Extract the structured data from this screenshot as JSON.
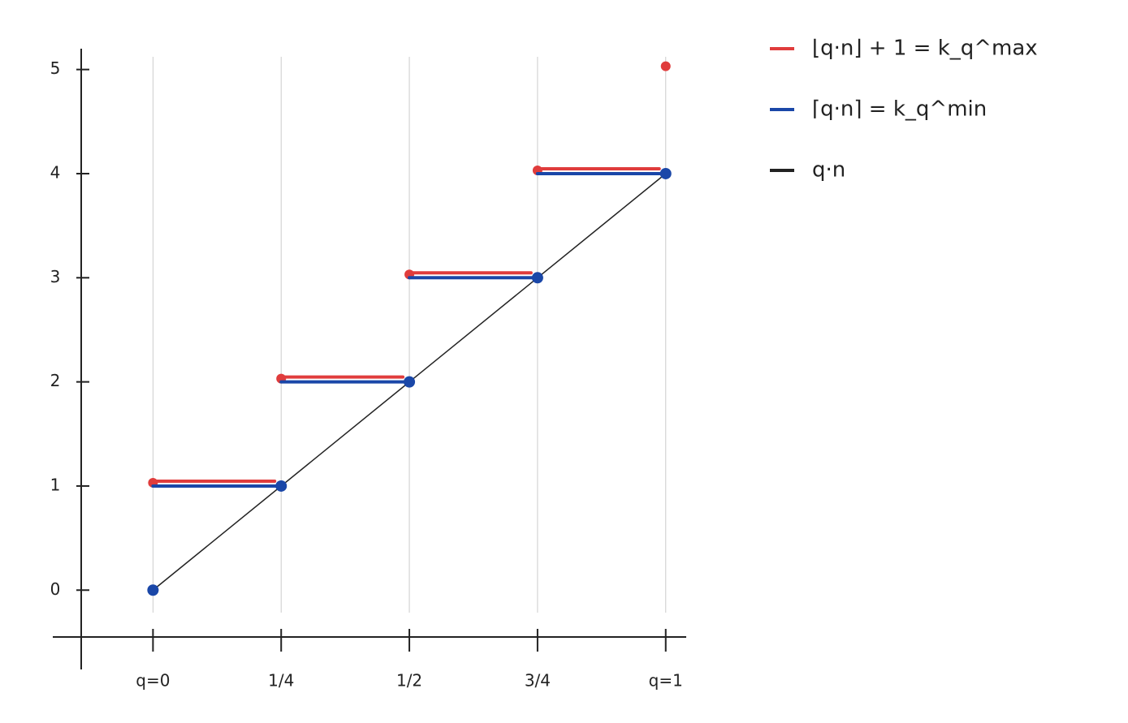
{
  "chart_data": {
    "type": "step",
    "xlim": [
      -0.14,
      1.04
    ],
    "ylim": [
      -0.45,
      5.2
    ],
    "xticks": [
      {
        "value": 0,
        "label": "q=0"
      },
      {
        "value": 0.25,
        "label": "1/4"
      },
      {
        "value": 0.5,
        "label": "1/2"
      },
      {
        "value": 0.75,
        "label": "3/4"
      },
      {
        "value": 1,
        "label": "q=1"
      }
    ],
    "yticks": [
      0,
      1,
      2,
      3,
      4,
      5
    ],
    "grid": true,
    "legend": "top-right",
    "series": [
      {
        "name": "⌊q·n⌋ + 1 = k_q^max",
        "color": "#e03c3c",
        "step": "post",
        "x": [
          0,
          0.25,
          0.5,
          0.75,
          1
        ],
        "values": [
          1,
          2,
          3,
          4,
          5
        ]
      },
      {
        "name": "⌈q·n⌉ = k_q^min",
        "color": "#1a47a8",
        "step": "pre",
        "x": [
          0,
          0.25,
          0.5,
          0.75,
          1
        ],
        "values": [
          0,
          1,
          2,
          3,
          4
        ]
      },
      {
        "name": "q·n",
        "color": "#222222",
        "step": "none",
        "x": [
          0,
          1
        ],
        "values": [
          0,
          4
        ]
      }
    ]
  }
}
